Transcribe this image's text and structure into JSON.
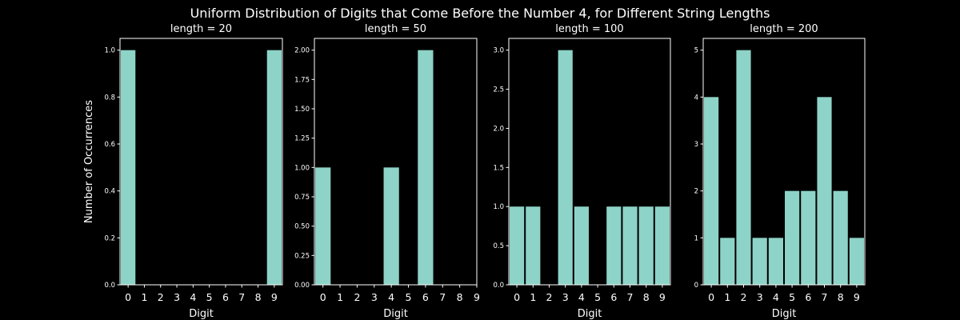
{
  "figure": {
    "suptitle": "Uniform Distribution of Digits that Come Before the Number 4, for Different String Lengths",
    "ylabel": "Number of Occurrences",
    "background": "#000000",
    "foreground": "#ffffff",
    "bar_color": "#8dd3c7"
  },
  "chart_data": [
    {
      "type": "bar",
      "title": "length = 20",
      "xlabel": "Digit",
      "ylabel": "Number of Occurrences",
      "x": [
        0,
        9
      ],
      "values": [
        1,
        1
      ],
      "xticks": [
        "0",
        "1",
        "2",
        "3",
        "4",
        "5",
        "6",
        "7",
        "8",
        "9"
      ],
      "yticks": [
        "0.0",
        "0.2",
        "0.4",
        "0.6",
        "0.8",
        "1.0"
      ],
      "xlim": [
        -0.5,
        9.5
      ],
      "ylim": [
        0,
        1.05
      ],
      "grid": false
    },
    {
      "type": "bar",
      "title": "length = 50",
      "xlabel": "Digit",
      "x": [
        0,
        4,
        6
      ],
      "values": [
        1,
        1,
        2
      ],
      "xticks": [
        "0",
        "1",
        "2",
        "3",
        "4",
        "5",
        "6",
        "7",
        "8",
        "9"
      ],
      "yticks": [
        "0.00",
        "0.25",
        "0.50",
        "0.75",
        "1.00",
        "1.25",
        "1.50",
        "1.75",
        "2.00"
      ],
      "xlim": [
        -0.5,
        9.0
      ],
      "ylim": [
        0,
        2.1
      ],
      "grid": false
    },
    {
      "type": "bar",
      "title": "length = 100",
      "xlabel": "Digit",
      "x": [
        0,
        1,
        3,
        4,
        6,
        7,
        8,
        9
      ],
      "values": [
        1,
        1,
        3,
        1,
        1,
        1,
        1,
        1
      ],
      "xticks": [
        "0",
        "1",
        "2",
        "3",
        "4",
        "5",
        "6",
        "7",
        "8",
        "9"
      ],
      "yticks": [
        "0.0",
        "0.5",
        "1.0",
        "1.5",
        "2.0",
        "2.5",
        "3.0"
      ],
      "xlim": [
        -0.5,
        9.5
      ],
      "ylim": [
        0,
        3.15
      ],
      "grid": false
    },
    {
      "type": "bar",
      "title": "length = 200",
      "xlabel": "Digit",
      "x": [
        0,
        1,
        2,
        3,
        4,
        5,
        6,
        7,
        8,
        9
      ],
      "values": [
        4,
        1,
        5,
        1,
        1,
        2,
        2,
        4,
        2,
        1
      ],
      "xticks": [
        "0",
        "1",
        "2",
        "3",
        "4",
        "5",
        "6",
        "7",
        "8",
        "9"
      ],
      "yticks": [
        "0",
        "1",
        "2",
        "3",
        "4",
        "5"
      ],
      "xlim": [
        -0.5,
        9.5
      ],
      "ylim": [
        0,
        5.25
      ],
      "grid": false
    }
  ]
}
